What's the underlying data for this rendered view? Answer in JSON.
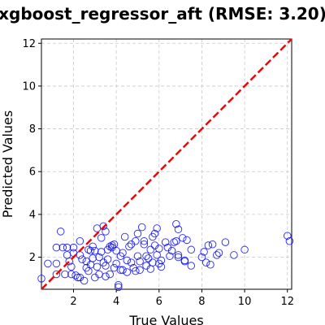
{
  "chart_data": {
    "type": "scatter",
    "title": "xgboost_regressor_aft (RMSE: 3.20)",
    "xlabel": "True Values",
    "ylabel": "Predicted Values",
    "xlim": [
      0.5,
      12.2
    ],
    "ylim": [
      0.5,
      12.2
    ],
    "xticks": [
      "2",
      "4",
      "6",
      "8",
      "10",
      "12"
    ],
    "yticks": [
      "2",
      "4",
      "6",
      "8",
      "10",
      "12"
    ],
    "grid": true,
    "reference_line": {
      "from": [
        0.5,
        0.5
      ],
      "to": [
        12.2,
        12.2
      ],
      "color": "#ff0000",
      "style": "dashed"
    },
    "marker": {
      "shape": "open-circle",
      "color": "#0000ff"
    },
    "points": [
      [
        0.5,
        1.0
      ],
      [
        0.8,
        1.7
      ],
      [
        1.2,
        1.2
      ],
      [
        1.2,
        1.7
      ],
      [
        1.2,
        2.45
      ],
      [
        1.4,
        3.2
      ],
      [
        1.5,
        2.45
      ],
      [
        1.6,
        1.2
      ],
      [
        1.7,
        2.1
      ],
      [
        1.7,
        2.45
      ],
      [
        1.8,
        1.8
      ],
      [
        1.9,
        1.2
      ],
      [
        1.9,
        1.55
      ],
      [
        2.0,
        2.45
      ],
      [
        2.0,
        2.2
      ],
      [
        2.1,
        1.15
      ],
      [
        2.2,
        1.05
      ],
      [
        2.3,
        1.05
      ],
      [
        2.3,
        2.75
      ],
      [
        2.3,
        2.1
      ],
      [
        2.4,
        1.9
      ],
      [
        2.5,
        0.9
      ],
      [
        2.6,
        1.8
      ],
      [
        2.6,
        1.5
      ],
      [
        2.7,
        1.35
      ],
      [
        2.7,
        2.35
      ],
      [
        2.8,
        2.3
      ],
      [
        2.8,
        1.65
      ],
      [
        2.9,
        1.95
      ],
      [
        2.9,
        2.5
      ],
      [
        3.0,
        1.05
      ],
      [
        3.0,
        2.3
      ],
      [
        3.1,
        3.35
      ],
      [
        3.1,
        1.55
      ],
      [
        3.2,
        1.2
      ],
      [
        3.2,
        2.0
      ],
      [
        3.3,
        2.25
      ],
      [
        3.3,
        2.9
      ],
      [
        3.4,
        3.45
      ],
      [
        3.4,
        1.75
      ],
      [
        3.5,
        3.2
      ],
      [
        3.5,
        1.1
      ],
      [
        3.5,
        1.6
      ],
      [
        3.6,
        2.35
      ],
      [
        3.6,
        1.9
      ],
      [
        3.7,
        2.5
      ],
      [
        3.7,
        1.2
      ],
      [
        3.8,
        2.45
      ],
      [
        3.8,
        2.55
      ],
      [
        3.9,
        1.5
      ],
      [
        3.9,
        2.6
      ],
      [
        4.0,
        1.7
      ],
      [
        4.0,
        2.3
      ],
      [
        4.1,
        0.7
      ],
      [
        4.1,
        0.6
      ],
      [
        4.2,
        1.4
      ],
      [
        4.2,
        2.05
      ],
      [
        4.3,
        2.2
      ],
      [
        4.3,
        1.4
      ],
      [
        4.4,
        2.95
      ],
      [
        4.5,
        1.85
      ],
      [
        4.5,
        1.3
      ],
      [
        4.6,
        2.5
      ],
      [
        4.7,
        1.75
      ],
      [
        4.7,
        2.6
      ],
      [
        4.8,
        1.5
      ],
      [
        4.9,
        1.35
      ],
      [
        4.9,
        2.75
      ],
      [
        5.0,
        3.1
      ],
      [
        5.0,
        2.05
      ],
      [
        5.1,
        1.4
      ],
      [
        5.1,
        1.8
      ],
      [
        5.2,
        3.4
      ],
      [
        5.3,
        2.75
      ],
      [
        5.3,
        2.6
      ],
      [
        5.4,
        1.6
      ],
      [
        5.4,
        2.05
      ],
      [
        5.5,
        1.95
      ],
      [
        5.6,
        2.35
      ],
      [
        5.6,
        1.45
      ],
      [
        5.7,
        1.75
      ],
      [
        5.7,
        2.95
      ],
      [
        5.8,
        2.55
      ],
      [
        5.8,
        3.1
      ],
      [
        5.9,
        3.35
      ],
      [
        5.9,
        2.1
      ],
      [
        6.0,
        1.7
      ],
      [
        6.0,
        2.4
      ],
      [
        6.1,
        1.55
      ],
      [
        6.1,
        1.85
      ],
      [
        6.3,
        2.7
      ],
      [
        6.4,
        2.45
      ],
      [
        6.5,
        2.05
      ],
      [
        6.6,
        2.3
      ],
      [
        6.7,
        2.7
      ],
      [
        6.8,
        3.55
      ],
      [
        6.8,
        2.75
      ],
      [
        6.9,
        3.3
      ],
      [
        6.9,
        2.0
      ],
      [
        6.9,
        2.1
      ],
      [
        7.1,
        2.9
      ],
      [
        7.2,
        1.85
      ],
      [
        7.2,
        1.8
      ],
      [
        7.3,
        2.8
      ],
      [
        7.5,
        2.35
      ],
      [
        7.5,
        1.6
      ],
      [
        8.0,
        2.0
      ],
      [
        8.1,
        2.25
      ],
      [
        8.2,
        1.75
      ],
      [
        8.3,
        2.55
      ],
      [
        8.4,
        1.65
      ],
      [
        8.5,
        2.6
      ],
      [
        8.7,
        2.1
      ],
      [
        8.8,
        2.2
      ],
      [
        9.1,
        2.7
      ],
      [
        9.5,
        2.1
      ],
      [
        10.0,
        2.35
      ],
      [
        12.0,
        3.0
      ],
      [
        12.1,
        2.75
      ]
    ]
  }
}
